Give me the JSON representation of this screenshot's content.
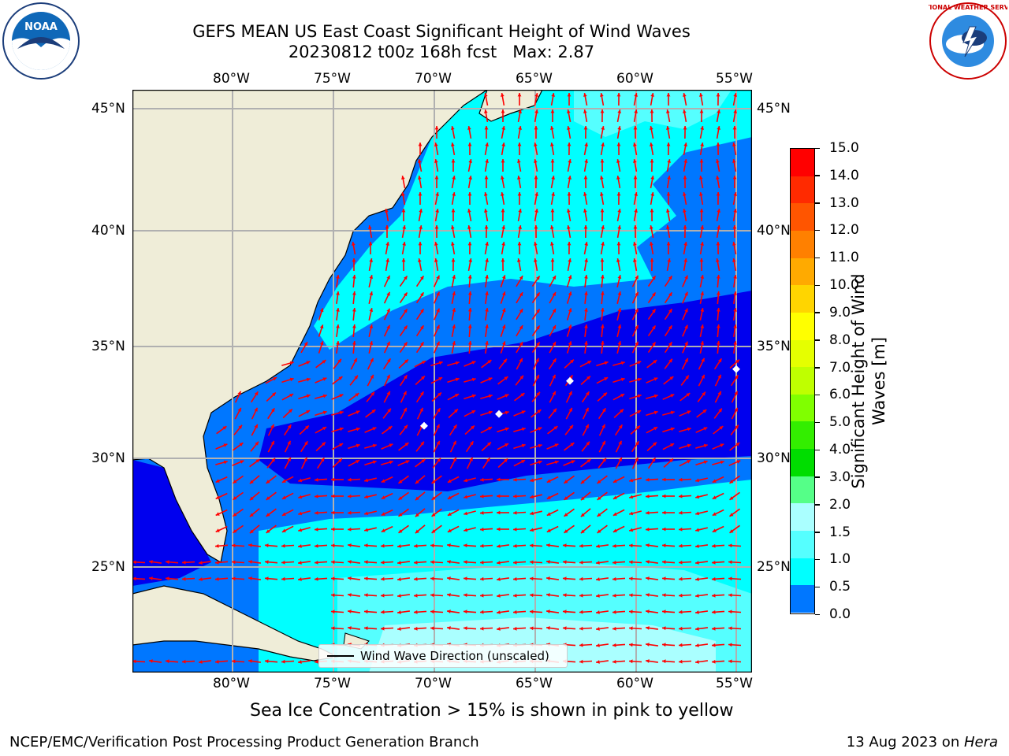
{
  "header": {
    "title_line1": "GEFS MEAN US East Coast Significant Height of Wind Waves",
    "title_line2": "20230812 t00z 168h fcst   Max: 2.87"
  },
  "logos": {
    "noaa_text": "NOAA",
    "noaa_ring_text": "NATIONAL OCEANIC AND ATMOSPHERIC ADMINISTRATION · U.S. DEPARTMENT OF COMMERCE",
    "nws_ring_text": "NATIONAL WEATHER SERVICE"
  },
  "map": {
    "lon_labels": [
      "80°W",
      "75°W",
      "70°W",
      "65°W",
      "60°W",
      "55°W"
    ],
    "lat_labels": [
      "45°N",
      "40°N",
      "35°N",
      "30°N",
      "25°N"
    ],
    "legend_label": "Wind Wave Direction (unscaled)",
    "arrow_color": "#ff0000",
    "land_color": "#efedd8"
  },
  "colorbar": {
    "label_line1": "Significant Height of Wind",
    "label_line2": "Waves [m]",
    "ticks": [
      "15.0",
      "14.0",
      "13.0",
      "12.0",
      "11.0",
      "10.0",
      "9.0",
      "8.0",
      "7.0",
      "6.0",
      "5.0",
      "4.0",
      "3.0",
      "2.0",
      "1.5",
      "1.0",
      "0.5",
      "0.0"
    ],
    "colors_top_to_bottom": [
      "#ff0000",
      "#ff2a00",
      "#ff5500",
      "#ff8000",
      "#ffaa00",
      "#ffd500",
      "#ffff00",
      "#e5ff00",
      "#bfff00",
      "#80ff00",
      "#33ee00",
      "#00dd00",
      "#55ff88",
      "#aaffff",
      "#55ffff",
      "#00ffff",
      "#0077ff",
      "#0000ee"
    ]
  },
  "notes": {
    "sea_ice": "Sea Ice Concentration > 15% is shown in pink to yellow"
  },
  "footer": {
    "left": "NCEP/EMC/Verification Post Processing Product Generation Branch",
    "right_date": "13 Aug 2023 on ",
    "right_host": "Hera"
  }
}
